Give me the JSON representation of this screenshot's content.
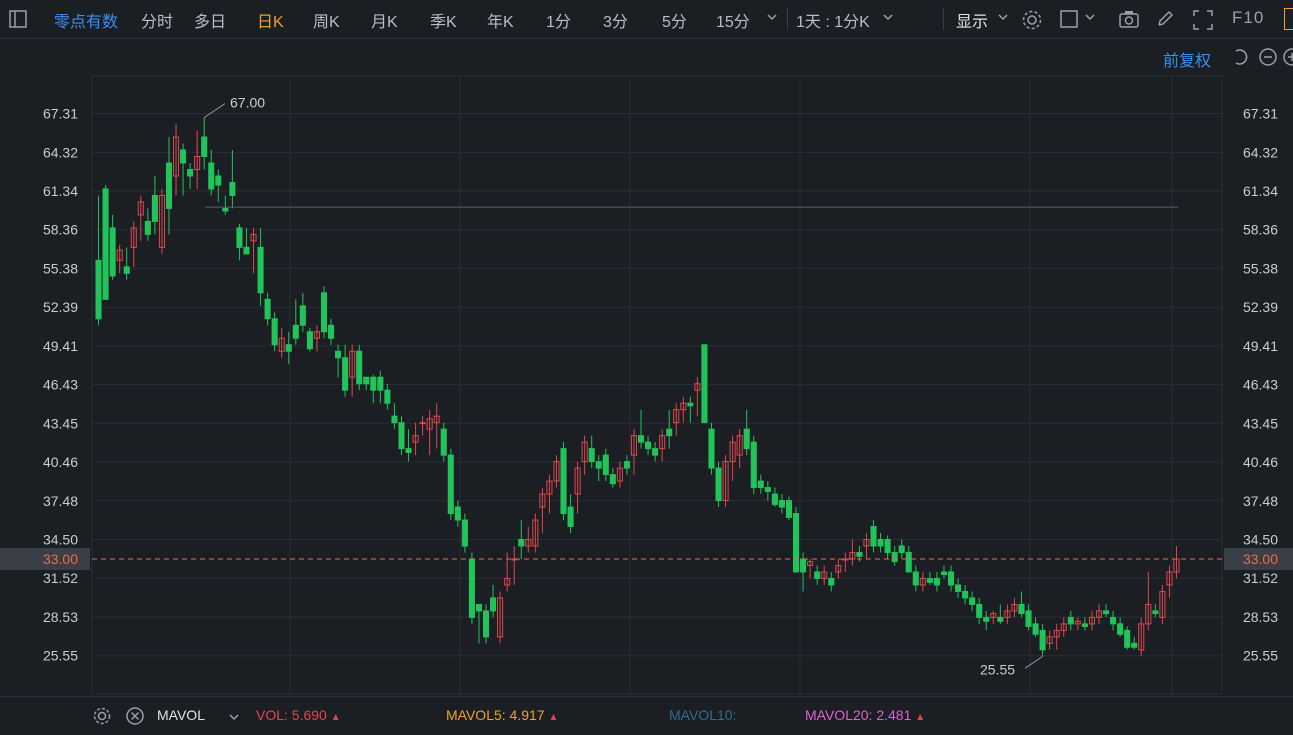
{
  "toolbar": {
    "tabs": [
      {
        "label": "零点有数",
        "state": "blue"
      },
      {
        "label": "分时",
        "state": ""
      },
      {
        "label": "多日",
        "state": ""
      },
      {
        "label": "日K",
        "state": "orange"
      },
      {
        "label": "周K",
        "state": ""
      },
      {
        "label": "月K",
        "state": ""
      },
      {
        "label": "季K",
        "state": ""
      },
      {
        "label": "年K",
        "state": ""
      },
      {
        "label": "1分",
        "state": ""
      },
      {
        "label": "3分",
        "state": ""
      },
      {
        "label": "5分",
        "state": ""
      },
      {
        "label": "15分",
        "state": ""
      }
    ],
    "period_select": "1天 : 1分K",
    "display": "显示",
    "f10": "F10",
    "adjust": "前复权"
  },
  "colors": {
    "up": "#e0464e",
    "down": "#22c35a",
    "bg": "#1b1f23",
    "grid": "#2a2f35",
    "axis_text": "#c8cdd2",
    "price_line": "#f06a50",
    "blue": "#3d8cf0",
    "orange": "#f0a030"
  },
  "chart_data": {
    "type": "candlestick",
    "y_ticks": [
      "67.31",
      "64.32",
      "61.34",
      "58.36",
      "55.38",
      "52.39",
      "49.41",
      "46.43",
      "43.45",
      "40.46",
      "37.48",
      "34.50",
      "31.52",
      "28.53",
      "25.55"
    ],
    "ylim": [
      22.6,
      70.2
    ],
    "current_price": "33.00",
    "max_label": "67.00",
    "min_label": "25.55",
    "candles": [
      [
        56.0,
        51.0,
        61.0,
        51.5
      ],
      [
        61.5,
        53.0,
        61.8,
        53.0
      ],
      [
        58.5,
        54.5,
        59.5,
        54.8
      ],
      [
        56.0,
        55.0,
        57.2,
        56.8
      ],
      [
        55.5,
        54.5,
        57.0,
        55.0
      ],
      [
        57.0,
        55.5,
        59.0,
        58.5
      ],
      [
        59.5,
        57.5,
        61.0,
        60.5
      ],
      [
        59.0,
        57.5,
        60.0,
        58.0
      ],
      [
        61.0,
        58.0,
        62.5,
        59.0
      ],
      [
        57.0,
        56.5,
        61.5,
        61.0
      ],
      [
        63.5,
        58.0,
        65.5,
        60.0
      ],
      [
        62.5,
        61.0,
        66.5,
        65.5
      ],
      [
        64.5,
        61.0,
        65.0,
        63.5
      ],
      [
        63.0,
        61.5,
        63.5,
        62.5
      ],
      [
        63.0,
        61.5,
        66.0,
        64.0
      ],
      [
        65.5,
        63.0,
        67.0,
        64.0
      ],
      [
        63.5,
        61.0,
        64.5,
        61.5
      ],
      [
        62.5,
        60.5,
        63.0,
        61.8
      ],
      [
        60.0,
        59.5,
        61.0,
        59.8
      ],
      [
        62.0,
        60.0,
        64.5,
        61.0
      ],
      [
        58.5,
        56.0,
        58.8,
        57.0
      ],
      [
        57.0,
        56.5,
        58.5,
        56.5
      ],
      [
        57.5,
        55.0,
        58.5,
        58.0
      ],
      [
        57.0,
        52.5,
        58.5,
        53.5
      ],
      [
        53.0,
        51.0,
        53.5,
        51.5
      ],
      [
        51.5,
        49.0,
        52.0,
        49.5
      ],
      [
        49.0,
        48.5,
        50.8,
        50.0
      ],
      [
        49.5,
        48.0,
        50.5,
        49.0
      ],
      [
        51.0,
        49.5,
        53.0,
        50.0
      ],
      [
        52.5,
        50.5,
        53.5,
        51.0
      ],
      [
        50.5,
        49.0,
        50.8,
        49.2
      ],
      [
        50.0,
        49.0,
        51.0,
        50.5
      ],
      [
        53.5,
        50.0,
        54.0,
        50.5
      ],
      [
        51.0,
        49.5,
        51.5,
        50.0
      ],
      [
        49.0,
        47.0,
        49.5,
        48.5
      ],
      [
        48.5,
        45.5,
        49.5,
        46.0
      ],
      [
        47.0,
        45.5,
        49.5,
        49.0
      ],
      [
        49.0,
        46.0,
        49.5,
        46.5
      ],
      [
        47.0,
        46.0,
        47.0,
        46.5
      ],
      [
        47.0,
        45.0,
        47.2,
        46.0
      ],
      [
        47.0,
        45.0,
        47.5,
        46.0
      ],
      [
        46.0,
        44.5,
        46.5,
        45.0
      ],
      [
        44.0,
        43.0,
        45.0,
        43.5
      ],
      [
        43.5,
        41.0,
        44.0,
        41.5
      ],
      [
        41.5,
        40.5,
        43.0,
        41.2
      ],
      [
        42.0,
        41.0,
        43.5,
        42.5
      ],
      [
        43.5,
        42.5,
        44.0,
        43.5
      ],
      [
        43.0,
        41.0,
        44.5,
        43.8
      ],
      [
        43.5,
        41.5,
        45.0,
        44.0
      ],
      [
        43.0,
        40.5,
        43.5,
        41.0
      ],
      [
        41.0,
        36.0,
        41.5,
        36.5
      ],
      [
        37.0,
        35.5,
        37.5,
        36.0
      ],
      [
        36.0,
        33.5,
        36.5,
        34.0
      ],
      [
        33.0,
        28.0,
        33.5,
        28.5
      ],
      [
        29.5,
        26.5,
        29.5,
        29.0
      ],
      [
        29.0,
        26.5,
        29.5,
        27.0
      ],
      [
        30.0,
        28.5,
        31.0,
        29.0
      ],
      [
        27.0,
        26.5,
        30.5,
        30.0
      ],
      [
        31.0,
        30.5,
        33.5,
        31.5
      ],
      [
        33.0,
        31.0,
        34.0,
        33.0
      ],
      [
        34.5,
        33.0,
        36.0,
        34.0
      ],
      [
        34.0,
        33.5,
        35.5,
        34.5
      ],
      [
        34.0,
        33.5,
        36.5,
        36.0
      ],
      [
        37.0,
        35.0,
        38.5,
        38.0
      ],
      [
        38.0,
        36.5,
        39.5,
        39.0
      ],
      [
        39.0,
        38.5,
        41.0,
        40.5
      ],
      [
        41.5,
        36.0,
        42.0,
        36.5
      ],
      [
        37.0,
        35.0,
        38.0,
        35.5
      ],
      [
        38.0,
        36.5,
        40.5,
        40.0
      ],
      [
        40.5,
        39.5,
        42.5,
        42.0
      ],
      [
        41.5,
        40.0,
        42.5,
        40.5
      ],
      [
        40.5,
        39.0,
        41.0,
        40.0
      ],
      [
        41.0,
        39.0,
        41.5,
        39.5
      ],
      [
        39.5,
        38.5,
        40.0,
        38.8
      ],
      [
        39.0,
        38.5,
        40.5,
        40.0
      ],
      [
        40.5,
        39.5,
        41.0,
        40.0
      ],
      [
        41.0,
        39.5,
        43.0,
        42.5
      ],
      [
        42.5,
        41.5,
        44.5,
        42.0
      ],
      [
        42.0,
        41.0,
        42.5,
        41.5
      ],
      [
        41.5,
        40.5,
        42.0,
        41.0
      ],
      [
        41.5,
        40.5,
        43.0,
        42.5
      ],
      [
        43.0,
        41.5,
        44.5,
        42.5
      ],
      [
        43.5,
        42.5,
        45.0,
        44.5
      ],
      [
        44.5,
        43.5,
        45.5,
        45.0
      ],
      [
        45.0,
        43.5,
        45.5,
        44.8
      ],
      [
        46.0,
        44.0,
        47.0,
        46.5
      ],
      [
        49.5,
        43.5,
        49.5,
        43.5
      ],
      [
        43.0,
        39.5,
        43.5,
        40.0
      ],
      [
        40.0,
        37.0,
        40.5,
        37.5
      ],
      [
        37.5,
        37.0,
        41.0,
        40.5
      ],
      [
        40.5,
        39.0,
        42.5,
        42.0
      ],
      [
        41.0,
        40.0,
        43.0,
        42.5
      ],
      [
        43.0,
        41.0,
        44.5,
        41.5
      ],
      [
        42.0,
        38.0,
        42.5,
        38.5
      ],
      [
        39.0,
        38.0,
        39.5,
        38.5
      ],
      [
        38.5,
        37.5,
        39.0,
        38.2
      ],
      [
        38.0,
        37.0,
        38.5,
        37.2
      ],
      [
        37.5,
        36.5,
        38.0,
        37.0
      ],
      [
        37.5,
        36.0,
        37.8,
        36.2
      ],
      [
        36.5,
        32.0,
        37.0,
        32.0
      ],
      [
        33.0,
        30.5,
        33.5,
        32.0
      ],
      [
        32.5,
        31.5,
        33.0,
        32.8
      ],
      [
        32.0,
        31.0,
        32.5,
        31.5
      ],
      [
        31.5,
        31.0,
        32.5,
        32.0
      ],
      [
        31.5,
        30.5,
        32.0,
        31.0
      ],
      [
        32.0,
        31.5,
        33.0,
        32.5
      ],
      [
        33.0,
        32.0,
        33.5,
        33.0
      ],
      [
        33.0,
        32.5,
        34.5,
        33.5
      ],
      [
        33.5,
        32.8,
        34.0,
        33.2
      ],
      [
        34.0,
        33.0,
        35.0,
        34.5
      ],
      [
        35.5,
        33.5,
        36.0,
        34.0
      ],
      [
        34.5,
        33.5,
        35.0,
        34.0
      ],
      [
        34.5,
        33.0,
        34.8,
        33.5
      ],
      [
        33.5,
        32.5,
        34.0,
        32.8
      ],
      [
        34.0,
        33.0,
        34.5,
        33.5
      ],
      [
        33.5,
        32.0,
        34.0,
        32.0
      ],
      [
        32.0,
        30.5,
        32.5,
        31.0
      ],
      [
        31.0,
        30.5,
        32.0,
        31.5
      ],
      [
        31.5,
        31.0,
        32.0,
        31.2
      ],
      [
        31.5,
        30.5,
        32.0,
        31.0
      ],
      [
        32.0,
        31.5,
        32.5,
        31.8
      ],
      [
        32.0,
        30.5,
        32.5,
        31.0
      ],
      [
        31.0,
        30.0,
        31.5,
        30.5
      ],
      [
        30.5,
        29.5,
        31.0,
        30.0
      ],
      [
        30.0,
        29.0,
        30.5,
        29.5
      ],
      [
        29.5,
        28.0,
        30.0,
        28.5
      ],
      [
        28.5,
        27.5,
        29.0,
        28.2
      ],
      [
        28.5,
        28.0,
        29.0,
        28.8
      ],
      [
        28.5,
        28.0,
        29.5,
        28.2
      ],
      [
        28.5,
        28.0,
        29.5,
        29.0
      ],
      [
        29.0,
        28.5,
        30.0,
        29.5
      ],
      [
        29.5,
        28.5,
        30.5,
        28.8
      ],
      [
        29.0,
        27.5,
        29.5,
        27.8
      ],
      [
        28.0,
        27.0,
        28.5,
        27.2
      ],
      [
        27.5,
        25.5,
        28.0,
        26.0
      ],
      [
        26.5,
        26.0,
        27.5,
        27.0
      ],
      [
        27.0,
        26.0,
        28.0,
        27.5
      ],
      [
        27.5,
        27.0,
        28.5,
        28.0
      ],
      [
        28.5,
        27.5,
        29.0,
        28.0
      ],
      [
        28.0,
        27.5,
        28.5,
        28.2
      ],
      [
        28.0,
        27.5,
        28.5,
        27.8
      ],
      [
        28.0,
        27.5,
        29.0,
        28.5
      ],
      [
        28.5,
        28.0,
        29.5,
        29.0
      ],
      [
        29.0,
        28.5,
        29.5,
        28.8
      ],
      [
        28.5,
        27.5,
        29.0,
        28.0
      ],
      [
        28.0,
        27.0,
        28.5,
        27.2
      ],
      [
        27.5,
        26.0,
        27.8,
        26.2
      ],
      [
        26.5,
        26.0,
        27.0,
        26.2
      ],
      [
        26.0,
        25.5,
        28.5,
        28.0
      ],
      [
        28.0,
        27.5,
        32.0,
        29.5
      ],
      [
        29.0,
        28.5,
        29.5,
        28.8
      ],
      [
        28.5,
        28.0,
        31.0,
        30.5
      ],
      [
        31.0,
        30.0,
        32.5,
        32.0
      ],
      [
        32.0,
        31.5,
        34.0,
        33.0
      ]
    ]
  },
  "bottom": {
    "indicator": "MAVOL",
    "vol": "VOL: 5.690",
    "mavol5": "MAVOL5: 4.917",
    "mavol10": "MAVOL10:",
    "mavol20": "MAVOL20: 2.481"
  }
}
